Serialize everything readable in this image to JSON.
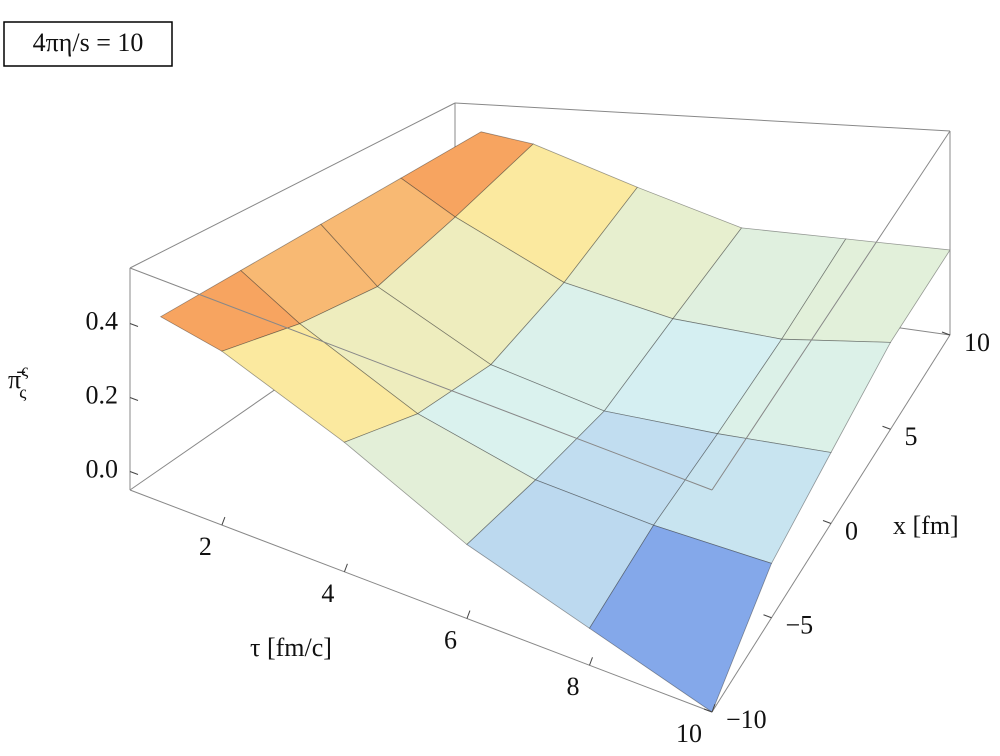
{
  "chart_data": {
    "type": "surface3d",
    "annotation": "4πη/s = 10",
    "zlabel": {
      "base": "π̄",
      "sup": "ς",
      "sub": "ς"
    },
    "xlabel": "τ [fm/c]",
    "ylabel": "x [fm]",
    "tau": [
      1,
      2,
      4,
      6,
      8,
      10
    ],
    "x": [
      -10,
      -5,
      0,
      5,
      10
    ],
    "z": [
      [
        0.45,
        0.45,
        0.45,
        0.45,
        0.45
      ],
      [
        0.42,
        0.35,
        0.3,
        0.35,
        0.42
      ],
      [
        0.3,
        0.2,
        0.15,
        0.2,
        0.3
      ],
      [
        0.15,
        0.12,
        0.1,
        0.15,
        0.2
      ],
      [
        0.05,
        0.1,
        0.12,
        0.15,
        0.2
      ],
      [
        -0.05,
        0.1,
        0.15,
        0.2,
        0.2
      ]
    ],
    "taulim": [
      0.5,
      10
    ],
    "xlim": [
      -10,
      10
    ],
    "zlim": [
      -0.05,
      0.55
    ],
    "tauticks": [
      2,
      4,
      6,
      8,
      10
    ],
    "xticks": [
      {
        "value": -10,
        "label": "−10"
      },
      {
        "value": -5,
        "label": "−5"
      },
      0,
      5,
      10
    ],
    "zticks": [
      {
        "value": 0,
        "label": "0.0"
      },
      0.2,
      0.4
    ],
    "colorscale": [
      "#2050e0",
      "#d8f2f2",
      "#fbeaa0",
      "#f46a2c"
    ]
  }
}
